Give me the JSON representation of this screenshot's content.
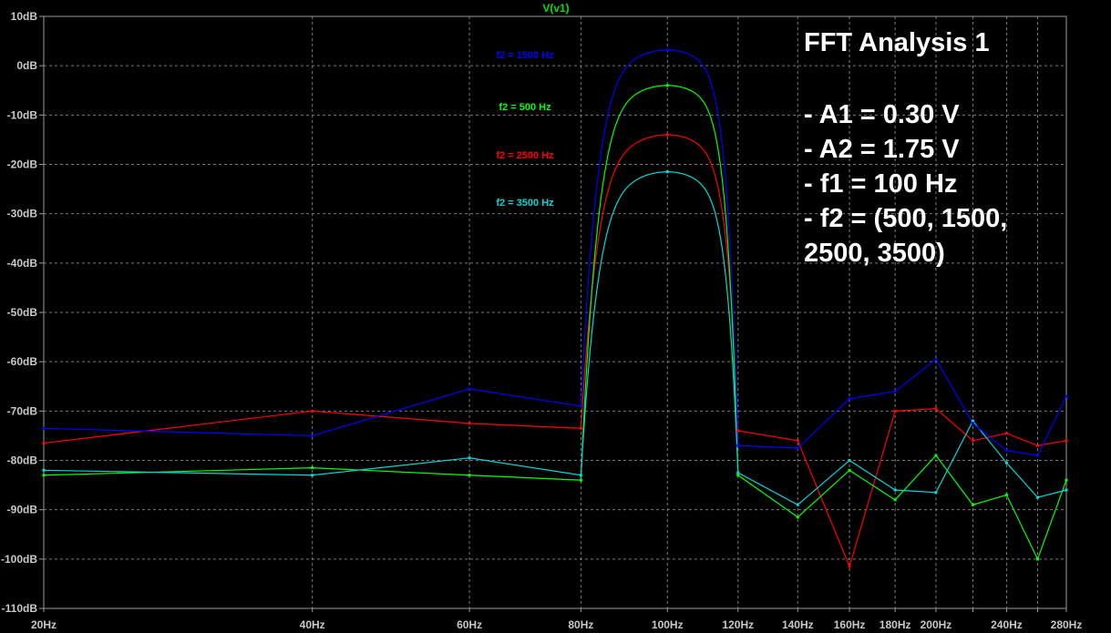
{
  "chart_data": {
    "type": "line",
    "title": "V(v1)",
    "x_scale": "log",
    "xlim": [
      20,
      280
    ],
    "ylim": [
      -110,
      10
    ],
    "grid": true,
    "x_ticks": [
      {
        "value": 20,
        "label": "20Hz"
      },
      {
        "value": 40,
        "label": "40Hz"
      },
      {
        "value": 60,
        "label": "60Hz"
      },
      {
        "value": 80,
        "label": "80Hz"
      },
      {
        "value": 100,
        "label": "100Hz"
      },
      {
        "value": 120,
        "label": "120Hz"
      },
      {
        "value": 140,
        "label": "140Hz"
      },
      {
        "value": 160,
        "label": "160Hz"
      },
      {
        "value": 180,
        "label": "180Hz"
      },
      {
        "value": 200,
        "label": "200Hz"
      },
      {
        "value": 220,
        "label": ""
      },
      {
        "value": 240,
        "label": "240Hz"
      },
      {
        "value": 260,
        "label": ""
      },
      {
        "value": 280,
        "label": "280Hz"
      }
    ],
    "y_ticks": [
      {
        "value": 10,
        "label": "10dB"
      },
      {
        "value": 0,
        "label": "0dB"
      },
      {
        "value": -10,
        "label": "-10dB"
      },
      {
        "value": -20,
        "label": "-20dB"
      },
      {
        "value": -30,
        "label": "-30dB"
      },
      {
        "value": -40,
        "label": "-40dB"
      },
      {
        "value": -50,
        "label": "-50dB"
      },
      {
        "value": -60,
        "label": "-60dB"
      },
      {
        "value": -70,
        "label": "-70dB"
      },
      {
        "value": -80,
        "label": "-80dB"
      },
      {
        "value": -90,
        "label": "-90dB"
      },
      {
        "value": -100,
        "label": "-100dB"
      },
      {
        "value": -110,
        "label": "-110dB"
      }
    ],
    "series": [
      {
        "name": "f2 = 1500 Hz",
        "color": "#0000ff",
        "points": [
          [
            20,
            -73.5
          ],
          [
            40,
            -75
          ],
          [
            60,
            -65.5
          ],
          [
            80,
            -69
          ],
          [
            100,
            3.2
          ],
          [
            120,
            -77
          ],
          [
            140,
            -77.5
          ],
          [
            160,
            -67.5
          ],
          [
            180,
            -66
          ],
          [
            200,
            -59.5
          ],
          [
            220,
            -72.5
          ],
          [
            240,
            -78
          ],
          [
            260,
            -79
          ],
          [
            280,
            -67
          ]
        ]
      },
      {
        "name": "f2 = 500 Hz",
        "color": "#00ff00",
        "points": [
          [
            20,
            -83
          ],
          [
            40,
            -81.5
          ],
          [
            60,
            -83
          ],
          [
            80,
            -84
          ],
          [
            100,
            -4
          ],
          [
            120,
            -83
          ],
          [
            140,
            -91.5
          ],
          [
            160,
            -82
          ],
          [
            180,
            -88
          ],
          [
            200,
            -79
          ],
          [
            220,
            -89
          ],
          [
            240,
            -87
          ],
          [
            260,
            -100
          ],
          [
            280,
            -84
          ]
        ]
      },
      {
        "name": "f2 = 2500 Hz",
        "color": "#ff0000",
        "points": [
          [
            20,
            -76.5
          ],
          [
            40,
            -70
          ],
          [
            60,
            -72.5
          ],
          [
            80,
            -73.5
          ],
          [
            100,
            -14
          ],
          [
            120,
            -74
          ],
          [
            140,
            -76
          ],
          [
            160,
            -101.5
          ],
          [
            180,
            -70
          ],
          [
            200,
            -69.5
          ],
          [
            220,
            -76
          ],
          [
            240,
            -74.5
          ],
          [
            260,
            -77
          ],
          [
            280,
            -76
          ]
        ]
      },
      {
        "name": "f2 = 3500 Hz",
        "color": "#00d7d7",
        "points": [
          [
            20,
            -82
          ],
          [
            40,
            -83
          ],
          [
            60,
            -79.5
          ],
          [
            80,
            -83
          ],
          [
            100,
            -21.5
          ],
          [
            120,
            -82.5
          ],
          [
            140,
            -89
          ],
          [
            160,
            -80
          ],
          [
            180,
            -86
          ],
          [
            200,
            -86.5
          ],
          [
            220,
            -72
          ],
          [
            240,
            -80.5
          ],
          [
            260,
            -87.5
          ],
          [
            280,
            -86
          ]
        ]
      }
    ]
  },
  "annotation": {
    "heading": "FFT Analysis 1",
    "lines": [
      "- A1 =  0.30 V",
      "- A2 =  1.75 V",
      "- f1 = 100 Hz",
      "- f2 = (500, 1500,",
      "2500, 3500)"
    ]
  }
}
